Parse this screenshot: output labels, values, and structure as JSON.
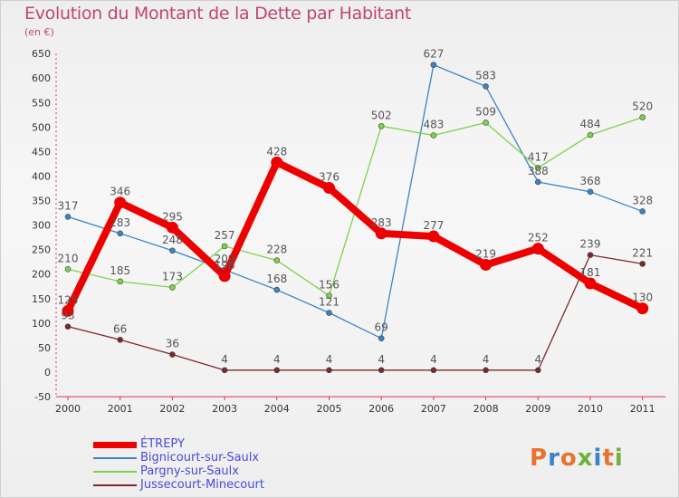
{
  "title": "Evolution du Montant de la Dette par Habitant",
  "subtitle": "(en €)",
  "logo": "Proxiti",
  "colors": {
    "title": "#c0476b",
    "legend_text": "#4a4adf",
    "logo": [
      "#e8732e",
      "#3b83c7",
      "#e8732e",
      "#6fb23a",
      "#3b83c7",
      "#e8732e",
      "#6fb23a"
    ]
  },
  "chart_data": {
    "type": "line",
    "title": "Evolution du Montant de la Dette par Habitant",
    "subtitle": "(en €)",
    "xlabel": "",
    "ylabel": "",
    "x": [
      "2000",
      "2001",
      "2002",
      "2003",
      "2004",
      "2005",
      "2006",
      "2007",
      "2008",
      "2009",
      "2010",
      "2011"
    ],
    "yticks": [
      "650",
      "600",
      "550",
      "500",
      "450",
      "400",
      "350",
      "300",
      "250",
      "200",
      "150",
      "100",
      "50",
      "0",
      "-50"
    ],
    "ylim": [
      -50,
      650
    ],
    "grid": false,
    "legend_position": "bottom-left",
    "series": [
      {
        "name": "Jussecourt-Minecourt",
        "color": "#7a2a2a",
        "labelColor": "#555555",
        "values": [
          93,
          66,
          36,
          4,
          4,
          4,
          4,
          4,
          4,
          4,
          239,
          221
        ],
        "labels": [
          "93",
          "66",
          "36",
          "4",
          "4",
          "4",
          "4",
          "4",
          "4",
          "4",
          "239",
          "221"
        ]
      },
      {
        "name": "Bignicourt-sur-Saulx",
        "color": "#3b83c7",
        "labelColor": "#555555",
        "values": [
          317,
          283,
          248,
          209,
          168,
          121,
          69,
          627,
          583,
          388,
          368,
          328
        ],
        "labels": [
          "317",
          "283",
          "248",
          "209",
          "168",
          "121",
          "69",
          "627",
          "583",
          "388",
          "368",
          "328"
        ]
      },
      {
        "name": "Pargny-sur-Saulx",
        "color": "#7cd44a",
        "labelColor": "#555555",
        "values": [
          210,
          185,
          173,
          257,
          228,
          156,
          502,
          483,
          509,
          417,
          484,
          520
        ],
        "labels": [
          "210",
          "185",
          "173",
          "257",
          "228",
          "156",
          "502",
          "483",
          "509",
          "417",
          "484",
          "520"
        ]
      },
      {
        "name": "ÉTREPY",
        "color": "#ee0000",
        "labelColor": "#555555",
        "values": [
          125,
          346,
          295,
          196,
          428,
          376,
          283,
          277,
          219,
          252,
          181,
          130
        ],
        "labels": [
          "125",
          "346",
          "295",
          "196",
          "428",
          "376",
          "283",
          "277",
          "219",
          "252",
          "181",
          "130"
        ]
      }
    ],
    "legend": [
      "ÉTREPY",
      "Bignicourt-sur-Saulx",
      "Pargny-sur-Saulx",
      "Jussecourt-Minecourt"
    ]
  }
}
